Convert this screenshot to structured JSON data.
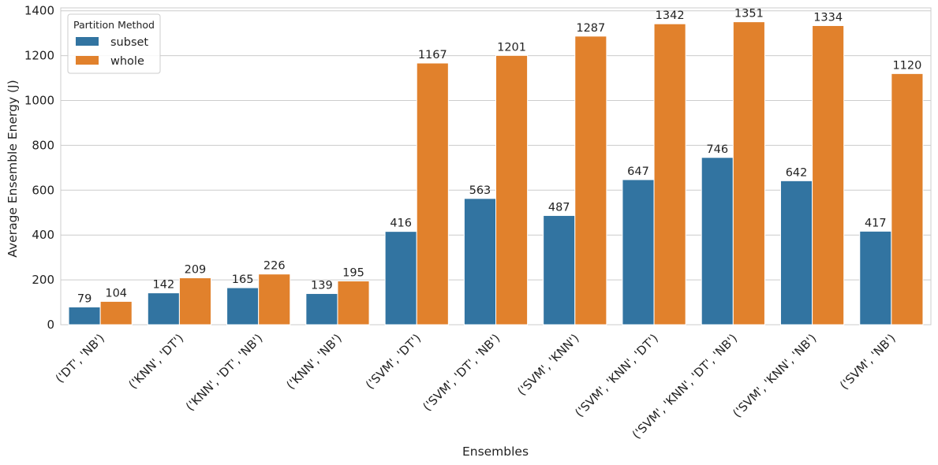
{
  "chart_data": {
    "type": "bar",
    "title": "",
    "xlabel": "Ensembles",
    "ylabel": "Average Ensemble Energy (J)",
    "ylim": [
      0,
      1400
    ],
    "yticks": [
      0,
      200,
      400,
      600,
      800,
      1000,
      1200,
      1400
    ],
    "grid": "horizontal",
    "legend": {
      "title": "Partition Method",
      "position": "top-left"
    },
    "categories": [
      "('DT', 'NB')",
      "('KNN', 'DT')",
      "('KNN', 'DT', 'NB')",
      "('KNN', 'NB')",
      "('SVM', 'DT')",
      "('SVM', 'DT', 'NB')",
      "('SVM', 'KNN')",
      "('SVM', 'KNN', 'DT')",
      "('SVM', 'KNN', 'DT', 'NB')",
      "('SVM', 'KNN', 'NB')",
      "('SVM', 'NB')"
    ],
    "series": [
      {
        "name": "subset",
        "color": "#3274a1",
        "values": [
          79,
          142,
          165,
          139,
          416,
          563,
          487,
          647,
          746,
          642,
          417
        ]
      },
      {
        "name": "whole",
        "color": "#e1812c",
        "values": [
          104,
          209,
          226,
          195,
          1167,
          1201,
          1287,
          1342,
          1351,
          1334,
          1120
        ]
      }
    ]
  }
}
